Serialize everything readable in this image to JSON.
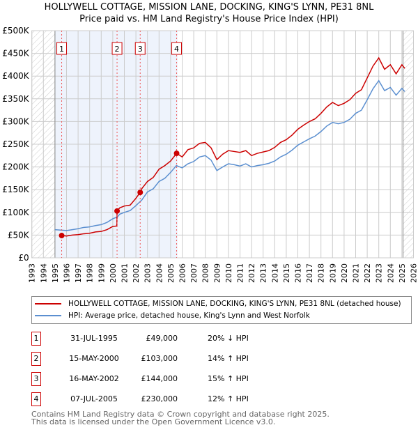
{
  "header": {
    "title_line1": "HOLLYWELL COTTAGE, MISSION LANE, DOCKING, KING'S LYNN, PE31 8NL",
    "title_line2": "Price paid vs. HM Land Registry's House Price Index (HPI)"
  },
  "chart_data": {
    "type": "line",
    "title": "Price paid vs. HM Land Registry's House Price Index (HPI)",
    "xlim": [
      1993,
      2026
    ],
    "ylim": [
      0,
      500000
    ],
    "x_ticks": [
      "1993",
      "1994",
      "1995",
      "1996",
      "1997",
      "1998",
      "1999",
      "2000",
      "2001",
      "2002",
      "2003",
      "2004",
      "2005",
      "2006",
      "2007",
      "2008",
      "2009",
      "2010",
      "2011",
      "2012",
      "2013",
      "2014",
      "2015",
      "2016",
      "2017",
      "2018",
      "2019",
      "2020",
      "2021",
      "2022",
      "2023",
      "2024",
      "2025",
      "2026"
    ],
    "y_ticks": [
      {
        "v": 0,
        "label": "£0"
      },
      {
        "v": 50000,
        "label": "£50K"
      },
      {
        "v": 100000,
        "label": "£100K"
      },
      {
        "v": 150000,
        "label": "£150K"
      },
      {
        "v": 200000,
        "label": "£200K"
      },
      {
        "v": 250000,
        "label": "£250K"
      },
      {
        "v": 300000,
        "label": "£300K"
      },
      {
        "v": 350000,
        "label": "£350K"
      },
      {
        "v": 400000,
        "label": "£400K"
      },
      {
        "v": 450000,
        "label": "£450K"
      },
      {
        "v": 500000,
        "label": "£500K"
      }
    ],
    "grid": true,
    "hatched_ranges": [
      [
        1993,
        1995
      ],
      [
        2025.1,
        2026
      ]
    ],
    "shaded_range": [
      1995,
      2005.6
    ],
    "series": [
      {
        "name": "HOLLYWELL COTTAGE, MISSION LANE, DOCKING, KING'S LYNN, PE31 8NL (detached house)",
        "color": "#cc0000",
        "x": [
          1995.58,
          1996,
          1996.5,
          1997,
          1997.5,
          1998,
          1998.5,
          1999,
          1999.5,
          2000,
          2000.35,
          2000.37,
          2000.6,
          2001,
          2001.5,
          2002,
          2002.37,
          2002.5,
          2003,
          2003.5,
          2004,
          2004.5,
          2005,
          2005.52,
          2006,
          2006.5,
          2007,
          2007.5,
          2008,
          2008.5,
          2009,
          2009.5,
          2010,
          2010.5,
          2011,
          2011.5,
          2012,
          2012.5,
          2013,
          2013.5,
          2014,
          2014.5,
          2015,
          2015.5,
          2016,
          2016.5,
          2017,
          2017.5,
          2018,
          2018.5,
          2019,
          2019.5,
          2020,
          2020.5,
          2021,
          2021.5,
          2022,
          2022.5,
          2023,
          2023.5,
          2024,
          2024.5,
          2025,
          2025.25
        ],
        "y": [
          49,
          48,
          50,
          51,
          53,
          54,
          57,
          58,
          62,
          69,
          70,
          103,
          110,
          114,
          116,
          131,
          144,
          152,
          168,
          177,
          195,
          203,
          213,
          230,
          222,
          238,
          242,
          252,
          254,
          242,
          216,
          228,
          236,
          234,
          232,
          236,
          225,
          230,
          233,
          236,
          243,
          254,
          260,
          270,
          283,
          292,
          300,
          306,
          318,
          332,
          342,
          335,
          340,
          348,
          362,
          370,
          396,
          422,
          440,
          415,
          425,
          405,
          425,
          417
        ]
      },
      {
        "name": "HPI: Average price, detached house, King's Lynn and West Norfolk",
        "color": "#5b8fd0",
        "x": [
          1995,
          1995.5,
          1996,
          1996.5,
          1997,
          1997.5,
          1998,
          1998.5,
          1999,
          1999.5,
          2000,
          2000.4,
          2000.6,
          2001,
          2001.5,
          2002,
          2002.5,
          2003,
          2003.5,
          2004,
          2004.5,
          2005,
          2005.5,
          2006,
          2006.5,
          2007,
          2007.5,
          2008,
          2008.5,
          2009,
          2009.5,
          2010,
          2010.5,
          2011,
          2011.5,
          2012,
          2012.5,
          2013,
          2013.5,
          2014,
          2014.5,
          2015,
          2015.5,
          2016,
          2016.5,
          2017,
          2017.5,
          2018,
          2018.5,
          2019,
          2019.5,
          2020,
          2020.5,
          2021,
          2021.5,
          2022,
          2022.5,
          2023,
          2023.5,
          2024,
          2024.5,
          2025,
          2025.25
        ],
        "y": [
          62,
          61,
          60,
          62,
          64,
          67,
          68,
          71,
          73,
          78,
          86,
          90,
          96,
          100,
          104,
          115,
          127,
          145,
          152,
          168,
          175,
          188,
          203,
          198,
          207,
          212,
          222,
          225,
          215,
          192,
          200,
          207,
          205,
          202,
          207,
          200,
          203,
          205,
          208,
          213,
          222,
          228,
          237,
          248,
          255,
          262,
          268,
          278,
          290,
          298,
          295,
          298,
          305,
          318,
          325,
          348,
          372,
          390,
          368,
          375,
          358,
          373,
          366
        ]
      }
    ],
    "y_units": "thousands GBP",
    "sales": [
      {
        "label": "1",
        "x": 1995.58,
        "price": 49000
      },
      {
        "label": "2",
        "x": 2000.37,
        "price": 103000
      },
      {
        "label": "3",
        "x": 2002.37,
        "price": 144000
      },
      {
        "label": "4",
        "x": 2005.52,
        "price": 230000
      }
    ]
  },
  "legend": {
    "red": "HOLLYWELL COTTAGE, MISSION LANE, DOCKING, KING'S LYNN, PE31 8NL (detached house)",
    "blue": "HPI: Average price, detached house, King's Lynn and West Norfolk"
  },
  "transactions": [
    {
      "num": "1",
      "date": "31-JUL-1995",
      "price": "£49,000",
      "hpi": "20% ↓ HPI"
    },
    {
      "num": "2",
      "date": "15-MAY-2000",
      "price": "£103,000",
      "hpi": "14% ↑ HPI"
    },
    {
      "num": "3",
      "date": "16-MAY-2002",
      "price": "£144,000",
      "hpi": "15% ↑ HPI"
    },
    {
      "num": "4",
      "date": "07-JUL-2005",
      "price": "£230,000",
      "hpi": "12% ↑ HPI"
    }
  ],
  "footer": {
    "line1": "Contains HM Land Registry data © Crown copyright and database right 2025.",
    "line2": "This data is licensed under the Open Government Licence v3.0."
  }
}
